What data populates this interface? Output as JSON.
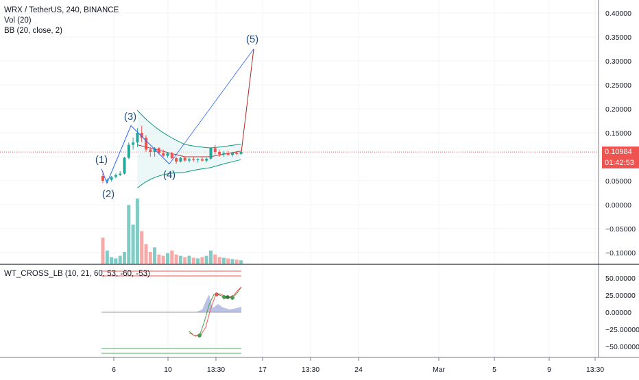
{
  "header": {
    "symbol_line": "WRX / TetherUS, 240, BINANCE",
    "indicators": [
      "Vol (20)",
      "BB (20, close, 2)"
    ]
  },
  "lower_pane": {
    "title": "WT_CROSS_LB (10, 21, 60, 53, -60, -53)",
    "y_ticks": [
      "50.00000",
      "25.00000",
      "0.00000",
      "−25.00000",
      "−50.00000"
    ]
  },
  "price_axis": {
    "ticks": [
      "0.40000",
      "0.35000",
      "0.30000",
      "0.25000",
      "0.20000",
      "0.15000",
      "0.10000",
      "0.05000",
      "0.00000",
      "−0.05000",
      "−0.10000"
    ]
  },
  "current_price": {
    "value": "0.10984",
    "countdown": "01:42:53",
    "color": "#ef5350"
  },
  "time_axis": {
    "labels": [
      "6",
      "10",
      "13:30",
      "17",
      "13:30",
      "24",
      "Mar",
      "5",
      "9",
      "13:30"
    ]
  },
  "wave_labels": [
    "(1)",
    "(2)",
    "(3)",
    "(4)",
    "(5)"
  ],
  "colors": {
    "up": "#26a69a",
    "down": "#ef5350",
    "wave_line": "#2962ff",
    "projection": "#b22222",
    "bb": "#089981",
    "bb_fill": "#e0f2f1",
    "wave_text": "#1f4e79"
  },
  "chart_data": {
    "type": "candlestick",
    "note_series": "approximate OHLC read from screenshot",
    "ylim": [
      -0.11,
      0.42
    ],
    "candles": [
      [
        0.06,
        0.07,
        0.045,
        0.05
      ],
      [
        0.05,
        0.055,
        0.045,
        0.052
      ],
      [
        0.052,
        0.06,
        0.048,
        0.058
      ],
      [
        0.058,
        0.065,
        0.055,
        0.062
      ],
      [
        0.062,
        0.07,
        0.06,
        0.065
      ],
      [
        0.065,
        0.1,
        0.063,
        0.098
      ],
      [
        0.098,
        0.13,
        0.095,
        0.125
      ],
      [
        0.125,
        0.14,
        0.115,
        0.13
      ],
      [
        0.13,
        0.16,
        0.12,
        0.15
      ],
      [
        0.15,
        0.165,
        0.13,
        0.14
      ],
      [
        0.14,
        0.145,
        0.11,
        0.115
      ],
      [
        0.115,
        0.12,
        0.1,
        0.11
      ],
      [
        0.11,
        0.12,
        0.1,
        0.118
      ],
      [
        0.118,
        0.12,
        0.105,
        0.108
      ],
      [
        0.108,
        0.115,
        0.1,
        0.102
      ],
      [
        0.102,
        0.11,
        0.098,
        0.107
      ],
      [
        0.107,
        0.11,
        0.095,
        0.097
      ],
      [
        0.097,
        0.1,
        0.085,
        0.09
      ],
      [
        0.09,
        0.1,
        0.088,
        0.098
      ],
      [
        0.098,
        0.1,
        0.09,
        0.092
      ],
      [
        0.092,
        0.098,
        0.088,
        0.095
      ],
      [
        0.095,
        0.1,
        0.09,
        0.093
      ],
      [
        0.093,
        0.097,
        0.088,
        0.095
      ],
      [
        0.095,
        0.1,
        0.09,
        0.092
      ],
      [
        0.092,
        0.098,
        0.088,
        0.096
      ],
      [
        0.096,
        0.12,
        0.094,
        0.118
      ],
      [
        0.118,
        0.125,
        0.105,
        0.11
      ],
      [
        0.11,
        0.115,
        0.1,
        0.105
      ],
      [
        0.105,
        0.112,
        0.1,
        0.108
      ],
      [
        0.108,
        0.113,
        0.102,
        0.104
      ],
      [
        0.104,
        0.11,
        0.1,
        0.109
      ],
      [
        0.109,
        0.112,
        0.103,
        0.106
      ],
      [
        0.106,
        0.112,
        0.104,
        0.11
      ]
    ],
    "volumes": [
      40,
      20,
      10,
      8,
      12,
      18,
      90,
      60,
      100,
      50,
      30,
      18,
      25,
      14,
      12,
      16,
      20,
      14,
      12,
      10,
      12,
      9,
      8,
      10,
      12,
      20,
      14,
      10,
      9,
      8,
      7,
      6,
      5
    ],
    "projection": {
      "from": 0.11,
      "to": 0.325
    }
  }
}
